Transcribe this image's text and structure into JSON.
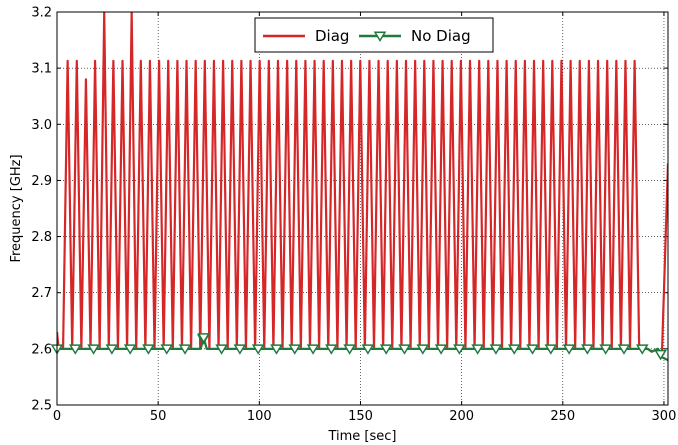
{
  "chart_data": {
    "type": "line",
    "title": "",
    "xlabel": "Time [sec]",
    "ylabel": "Frequency [GHz]",
    "xlim": [
      0,
      302
    ],
    "ylim": [
      2.5,
      3.2
    ],
    "x_ticks": [
      0,
      50,
      100,
      150,
      200,
      250,
      300
    ],
    "y_ticks": [
      2.5,
      2.6,
      2.7,
      2.8,
      2.9,
      3.0,
      3.1,
      3.2
    ],
    "x_tick_labels": [
      "0",
      "50",
      "100",
      "150",
      "200",
      "250",
      "300"
    ],
    "y_tick_labels": [
      "2.5",
      "2.6",
      "2.7",
      "2.8",
      "2.9",
      "3.0",
      "3.1",
      "3.2"
    ],
    "grid": true,
    "legend_position": "top-center",
    "series": [
      {
        "name": "Diag",
        "color": "#d62728",
        "marker": "none",
        "oscillation": {
          "low": 2.6,
          "high": 3.113,
          "period_sec": 4.52,
          "start_sec": 3,
          "end_sec": 292,
          "special_peaks": [
            {
              "x": 15.7,
              "y": 3.08
            },
            {
              "x": 25.5,
              "y": 3.2
            },
            {
              "x": 36.8,
              "y": 3.2
            }
          ]
        },
        "points": [
          {
            "x": 0,
            "y": 2.63
          },
          {
            "x": 0.8,
            "y": 2.6
          },
          {
            "x": 292,
            "y": 2.6
          },
          {
            "x": 294,
            "y": 2.595
          },
          {
            "x": 297,
            "y": 2.6
          },
          {
            "x": 299,
            "y": 2.59
          },
          {
            "x": 302,
            "y": 2.93
          }
        ]
      },
      {
        "name": "No Diag",
        "color": "#1e7b3c",
        "marker": "triangle-down",
        "marker_every_sec": 9.04,
        "points": [
          {
            "x": 0,
            "y": 2.6
          },
          {
            "x": 71,
            "y": 2.6
          },
          {
            "x": 72.5,
            "y": 2.62
          },
          {
            "x": 74,
            "y": 2.6
          },
          {
            "x": 292,
            "y": 2.6
          },
          {
            "x": 294,
            "y": 2.595
          },
          {
            "x": 297,
            "y": 2.6
          },
          {
            "x": 299,
            "y": 2.585
          },
          {
            "x": 302,
            "y": 2.58
          }
        ]
      }
    ]
  }
}
